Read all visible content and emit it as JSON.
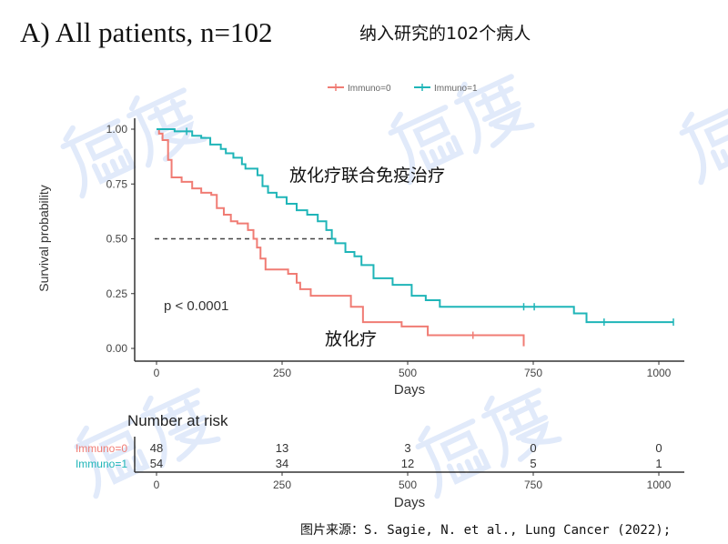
{
  "header": {
    "title": "A) All patients, n=102",
    "subtitle": "纳入研究的102个病人"
  },
  "source": "图片来源：S. Sagie, N. et al., Lung Cancer (2022);",
  "watermark": "癌度",
  "chart_data": {
    "type": "line",
    "subtype": "kaplan-meier step",
    "xlabel": "Days",
    "ylabel": "Survival probability",
    "xlim": [
      0,
      1030
    ],
    "ylim": [
      0,
      1
    ],
    "xticks": [
      0,
      250,
      500,
      750,
      1000
    ],
    "yticks": [
      "0.00",
      "0.25",
      "0.50",
      "0.75",
      "1.00"
    ],
    "legend_position": "top",
    "grid": false,
    "median_line": {
      "y": 0.5,
      "x_end": 352
    },
    "annotations": {
      "p_value": "p < 0.0001",
      "immuno1_label": "放化疗联合免疫治疗",
      "immuno0_label": "放化疗"
    },
    "series": [
      {
        "name": "Immuno=0",
        "color": "#f07c74",
        "steps": [
          [
            0,
            1
          ],
          [
            5,
            0.98
          ],
          [
            12,
            0.95
          ],
          [
            23,
            0.86
          ],
          [
            30,
            0.78
          ],
          [
            50,
            0.76
          ],
          [
            71,
            0.73
          ],
          [
            89,
            0.71
          ],
          [
            109,
            0.7
          ],
          [
            120,
            0.64
          ],
          [
            134,
            0.61
          ],
          [
            148,
            0.58
          ],
          [
            161,
            0.57
          ],
          [
            182,
            0.54
          ],
          [
            193,
            0.5
          ],
          [
            200,
            0.46
          ],
          [
            207,
            0.41
          ],
          [
            217,
            0.36
          ],
          [
            262,
            0.34
          ],
          [
            279,
            0.3
          ],
          [
            286,
            0.27
          ],
          [
            307,
            0.24
          ],
          [
            387,
            0.19
          ],
          [
            411,
            0.12
          ],
          [
            488,
            0.1
          ],
          [
            540,
            0.06
          ],
          [
            731,
            0.06
          ],
          [
            731,
            0.01
          ]
        ],
        "censored": [
          [
            630,
            0.06
          ]
        ]
      },
      {
        "name": "Immuno=1",
        "color": "#1fb5b8",
        "steps": [
          [
            0,
            1
          ],
          [
            36,
            0.99
          ],
          [
            71,
            0.97
          ],
          [
            89,
            0.96
          ],
          [
            107,
            0.93
          ],
          [
            128,
            0.91
          ],
          [
            138,
            0.89
          ],
          [
            153,
            0.87
          ],
          [
            170,
            0.84
          ],
          [
            177,
            0.82
          ],
          [
            201,
            0.79
          ],
          [
            211,
            0.74
          ],
          [
            222,
            0.71
          ],
          [
            239,
            0.69
          ],
          [
            259,
            0.66
          ],
          [
            279,
            0.63
          ],
          [
            300,
            0.61
          ],
          [
            321,
            0.58
          ],
          [
            338,
            0.54
          ],
          [
            349,
            0.5
          ],
          [
            356,
            0.48
          ],
          [
            376,
            0.44
          ],
          [
            394,
            0.42
          ],
          [
            408,
            0.38
          ],
          [
            432,
            0.32
          ],
          [
            470,
            0.29
          ],
          [
            508,
            0.24
          ],
          [
            536,
            0.22
          ],
          [
            564,
            0.19
          ],
          [
            831,
            0.16
          ],
          [
            856,
            0.12
          ],
          [
            1029,
            0.12
          ]
        ],
        "censored": [
          [
            60,
            0.99
          ],
          [
            731,
            0.19
          ],
          [
            752,
            0.19
          ],
          [
            891,
            0.12
          ],
          [
            1029,
            0.12
          ]
        ]
      }
    ],
    "risk_table": {
      "title": "Number at risk",
      "xlabel": "Days",
      "times": [
        0,
        250,
        500,
        750,
        1000
      ],
      "rows": [
        {
          "label": "Immuno=0",
          "color": "#f07c74",
          "values": [
            48,
            13,
            3,
            0,
            0
          ]
        },
        {
          "label": "Immuno=1",
          "color": "#1fb5b8",
          "values": [
            54,
            34,
            12,
            5,
            1
          ]
        }
      ]
    }
  }
}
